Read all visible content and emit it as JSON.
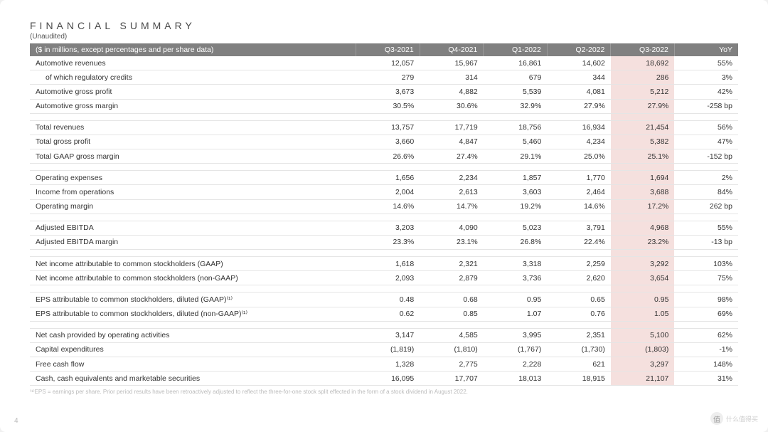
{
  "title": "FINANCIAL SUMMARY",
  "subtitle": "(Unaudited)",
  "columns": [
    "($ in millions, except percentages and per share data)",
    "Q3-2021",
    "Q4-2021",
    "Q1-2022",
    "Q2-2022",
    "Q3-2022",
    "YoY"
  ],
  "highlight_col_index": 5,
  "highlight_color": "#f5e0de",
  "header_bg": "#808080",
  "header_fg": "#ffffff",
  "rows": [
    {
      "label": "Automotive revenues",
      "vals": [
        "12,057",
        "15,967",
        "16,861",
        "14,602",
        "18,692",
        "55%"
      ]
    },
    {
      "label": "of which regulatory credits",
      "indent": true,
      "vals": [
        "279",
        "314",
        "679",
        "344",
        "286",
        "3%"
      ]
    },
    {
      "label": "Automotive gross profit",
      "vals": [
        "3,673",
        "4,882",
        "5,539",
        "4,081",
        "5,212",
        "42%"
      ]
    },
    {
      "label": "Automotive gross margin",
      "vals": [
        "30.5%",
        "30.6%",
        "32.9%",
        "27.9%",
        "27.9%",
        "-258 bp"
      ]
    },
    {
      "spacer": true
    },
    {
      "label": "Total revenues",
      "vals": [
        "13,757",
        "17,719",
        "18,756",
        "16,934",
        "21,454",
        "56%"
      ]
    },
    {
      "label": "Total gross profit",
      "vals": [
        "3,660",
        "4,847",
        "5,460",
        "4,234",
        "5,382",
        "47%"
      ]
    },
    {
      "label": "Total GAAP gross margin",
      "vals": [
        "26.6%",
        "27.4%",
        "29.1%",
        "25.0%",
        "25.1%",
        "-152 bp"
      ]
    },
    {
      "spacer": true
    },
    {
      "label": "Operating expenses",
      "vals": [
        "1,656",
        "2,234",
        "1,857",
        "1,770",
        "1,694",
        "2%"
      ]
    },
    {
      "label": "Income from operations",
      "vals": [
        "2,004",
        "2,613",
        "3,603",
        "2,464",
        "3,688",
        "84%"
      ]
    },
    {
      "label": "Operating margin",
      "vals": [
        "14.6%",
        "14.7%",
        "19.2%",
        "14.6%",
        "17.2%",
        "262 bp"
      ]
    },
    {
      "spacer": true
    },
    {
      "label": "Adjusted EBITDA",
      "vals": [
        "3,203",
        "4,090",
        "5,023",
        "3,791",
        "4,968",
        "55%"
      ]
    },
    {
      "label": "Adjusted EBITDA margin",
      "vals": [
        "23.3%",
        "23.1%",
        "26.8%",
        "22.4%",
        "23.2%",
        "-13 bp"
      ]
    },
    {
      "spacer": true
    },
    {
      "label": "Net income attributable to common stockholders (GAAP)",
      "vals": [
        "1,618",
        "2,321",
        "3,318",
        "2,259",
        "3,292",
        "103%"
      ]
    },
    {
      "label": "Net income attributable to common stockholders (non-GAAP)",
      "vals": [
        "2,093",
        "2,879",
        "3,736",
        "2,620",
        "3,654",
        "75%"
      ]
    },
    {
      "spacer": true
    },
    {
      "label": "EPS attributable to common stockholders, diluted (GAAP)⁽¹⁾",
      "vals": [
        "0.48",
        "0.68",
        "0.95",
        "0.65",
        "0.95",
        "98%"
      ]
    },
    {
      "label": "EPS attributable to common stockholders, diluted (non-GAAP)⁽¹⁾",
      "vals": [
        "0.62",
        "0.85",
        "1.07",
        "0.76",
        "1.05",
        "69%"
      ]
    },
    {
      "spacer": true
    },
    {
      "label": "Net cash provided by operating activities",
      "vals": [
        "3,147",
        "4,585",
        "3,995",
        "2,351",
        "5,100",
        "62%"
      ]
    },
    {
      "label": "Capital expenditures",
      "vals": [
        "(1,819)",
        "(1,810)",
        "(1,767)",
        "(1,730)",
        "(1,803)",
        "-1%"
      ]
    },
    {
      "label": "Free cash flow",
      "vals": [
        "1,328",
        "2,775",
        "2,228",
        "621",
        "3,297",
        "148%"
      ]
    },
    {
      "label": "Cash, cash equivalents and marketable securities",
      "vals": [
        "16,095",
        "17,707",
        "18,013",
        "18,915",
        "21,107",
        "31%"
      ]
    }
  ],
  "footnote": "⁽¹⁾EPS = earnings per share. Prior period results have been retroactively adjusted to reflect the three-for-one stock split effected in the form of a stock dividend in August 2022.",
  "page_number": "4",
  "watermark": {
    "icon": "值",
    "text": "什么值得买"
  }
}
